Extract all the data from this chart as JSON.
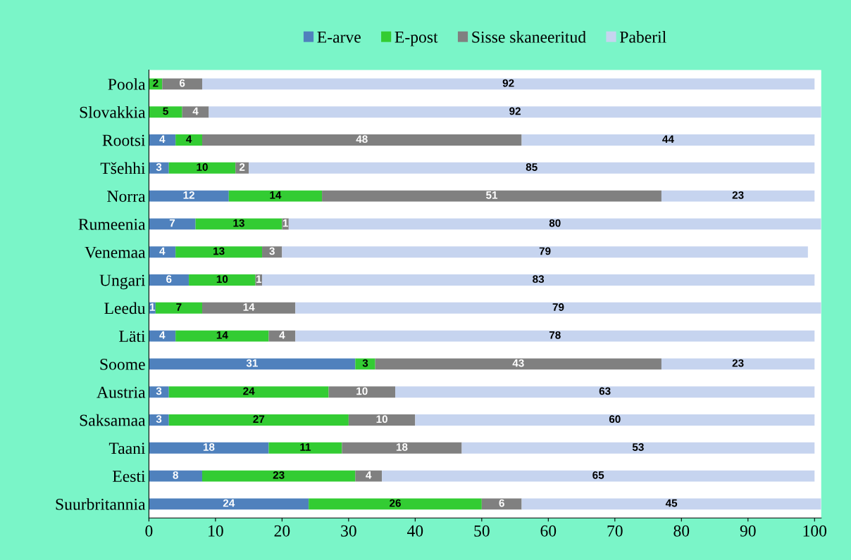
{
  "chart_data": {
    "type": "bar",
    "orientation": "horizontal",
    "stacked": true,
    "data_labels": true,
    "legend": "top",
    "grid": false,
    "categories": [
      "Poola",
      "Slovakkia",
      "Rootsi",
      "Tšehhi",
      "Norra",
      "Rumeenia",
      "Venemaa",
      "Ungari",
      "Leedu",
      "Läti",
      "Soome",
      "Austria",
      "Saksamaa",
      "Taani",
      "Eesti",
      "Suurbritannia"
    ],
    "series": [
      {
        "name": "E-arve",
        "color": "#4f81bd",
        "values": [
          null,
          null,
          4,
          3,
          12,
          7,
          4,
          6,
          1,
          4,
          31,
          3,
          3,
          18,
          8,
          24
        ]
      },
      {
        "name": "E-post",
        "color": "#33cc33",
        "values": [
          2,
          5,
          4,
          10,
          14,
          13,
          13,
          10,
          7,
          14,
          3,
          24,
          27,
          11,
          23,
          26
        ]
      },
      {
        "name": "Sisse skaneeritud",
        "color": "#808080",
        "values": [
          6,
          4,
          48,
          2,
          51,
          1,
          3,
          1,
          14,
          4,
          43,
          10,
          10,
          18,
          4,
          6
        ]
      },
      {
        "name": "Paberil",
        "color": "#c6d4ef",
        "values": [
          92,
          92,
          44,
          85,
          23,
          80,
          79,
          83,
          79,
          78,
          23,
          63,
          60,
          53,
          65,
          45
        ]
      }
    ],
    "xlim": [
      0,
      101
    ],
    "xticks": [
      0,
      10,
      20,
      30,
      40,
      50,
      60,
      70,
      80,
      90,
      100
    ]
  }
}
